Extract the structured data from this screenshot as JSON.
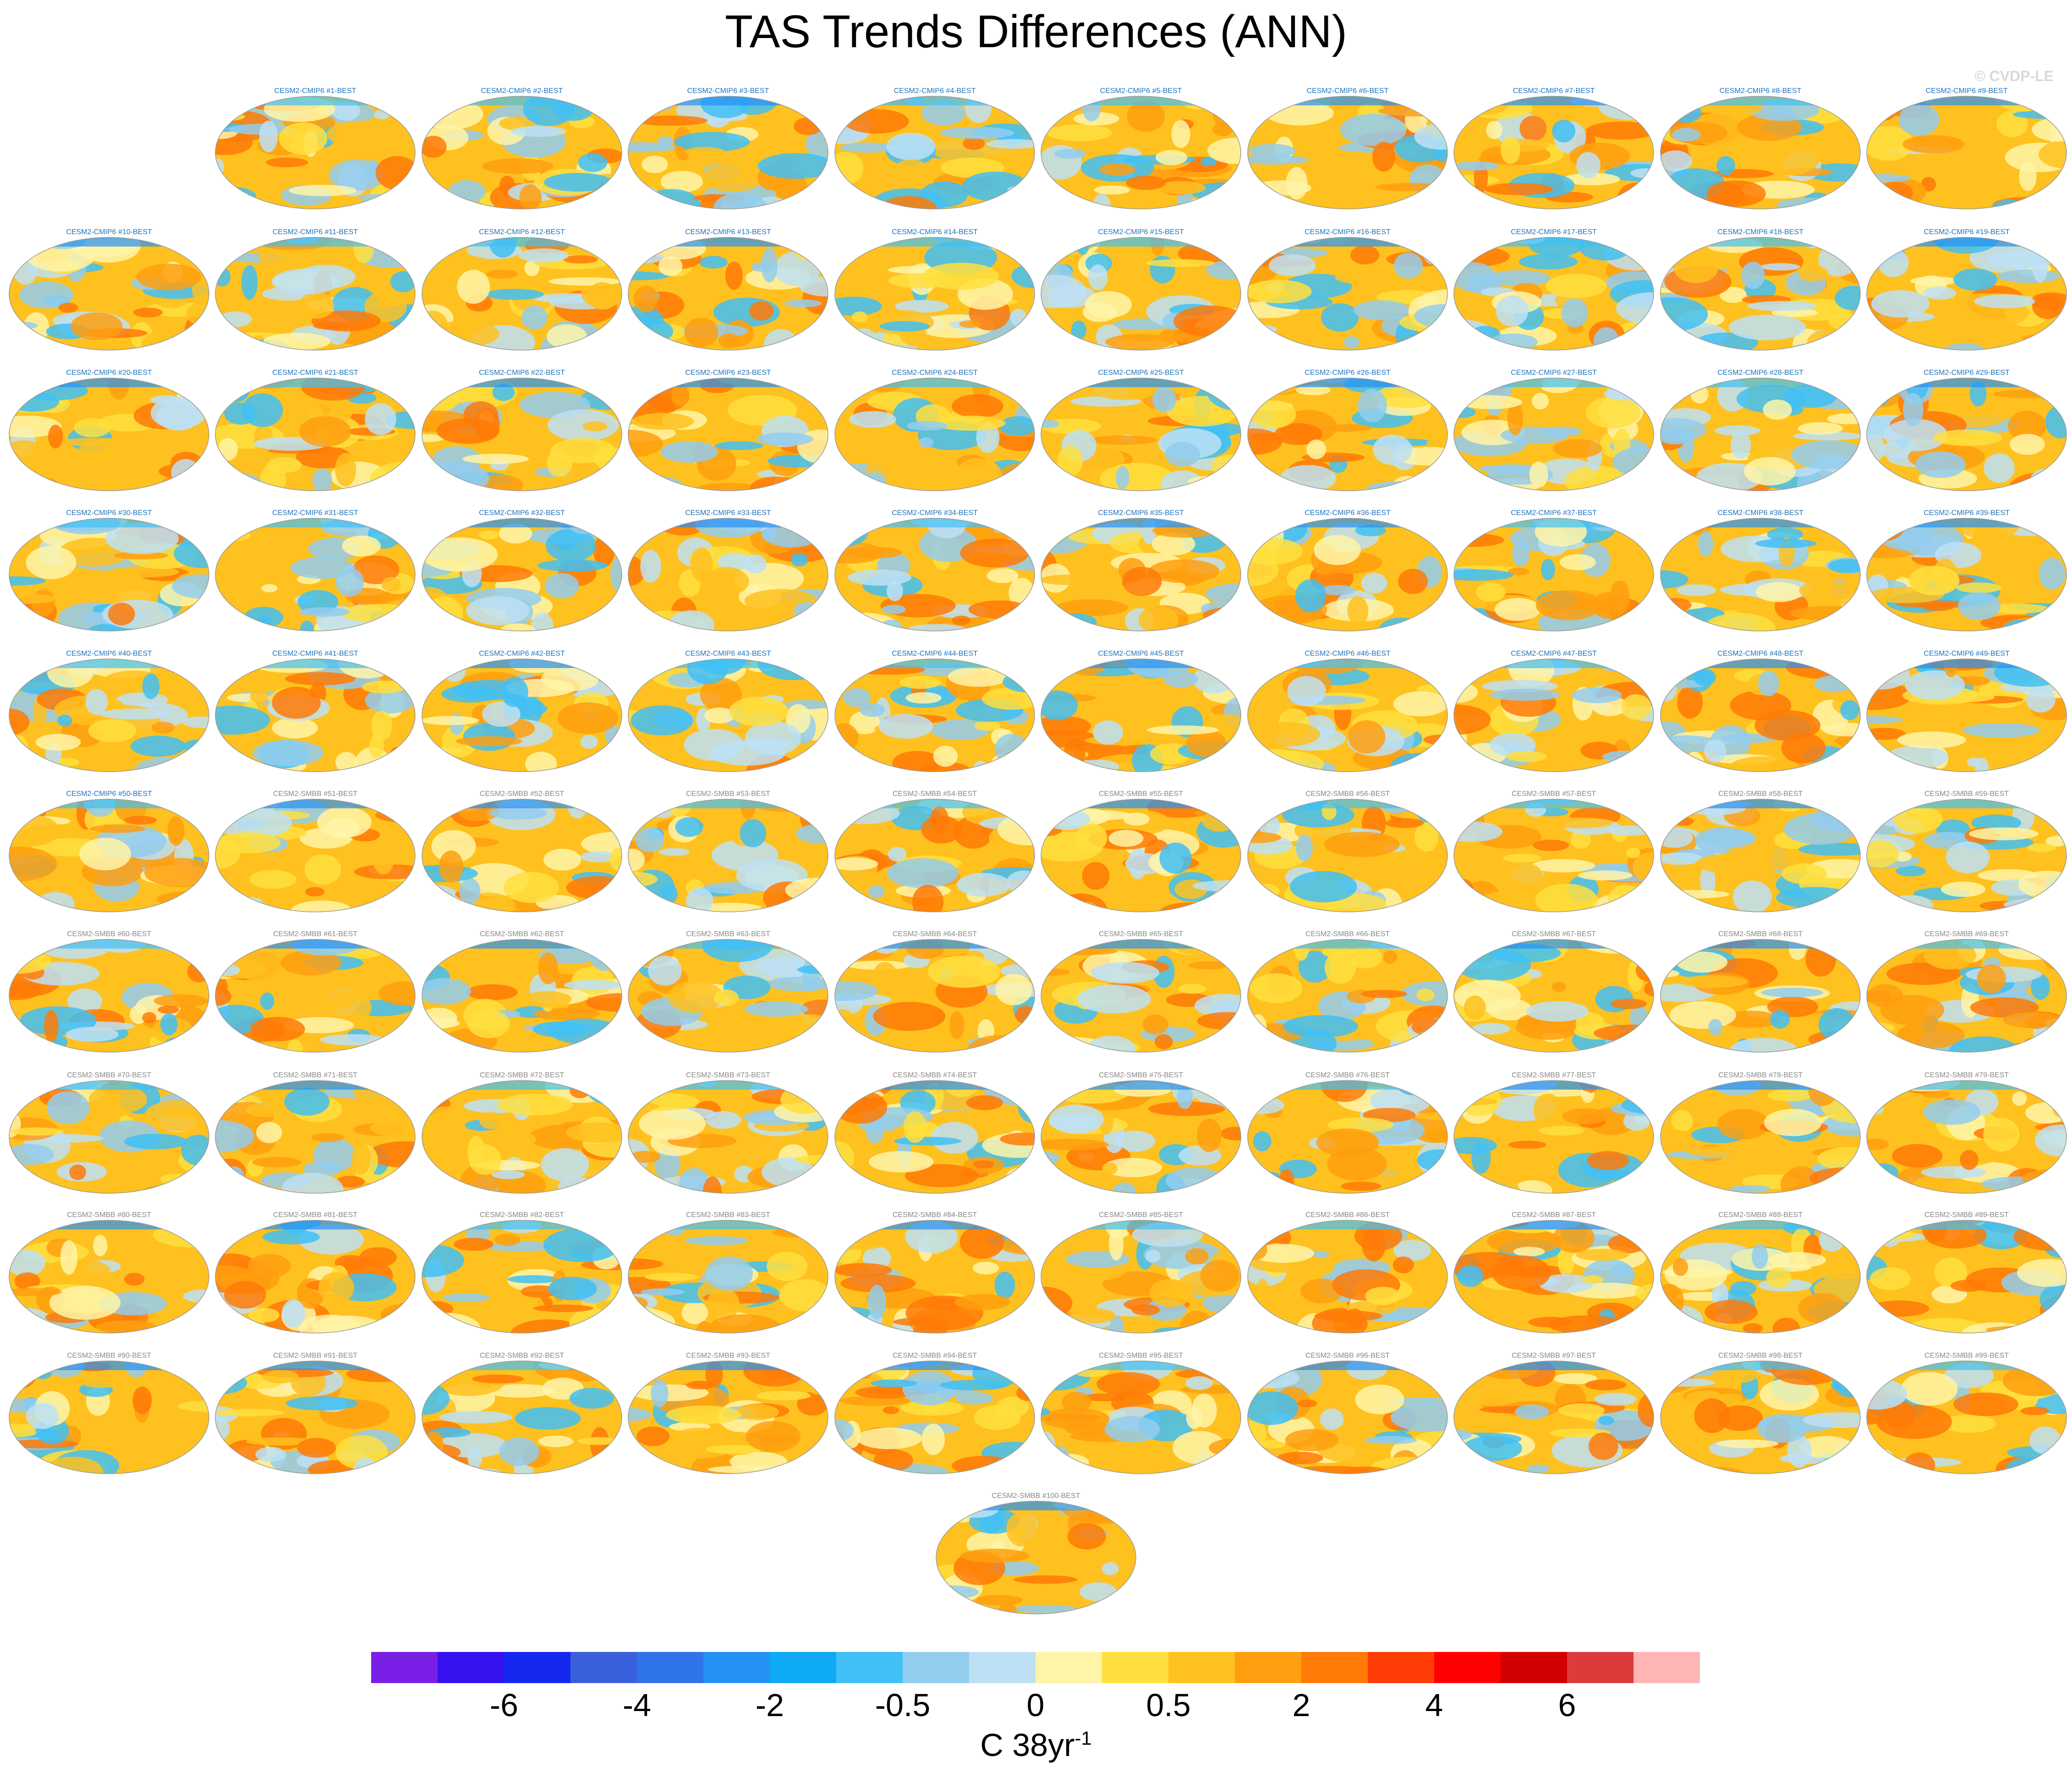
{
  "title": "TAS Trends Differences (ANN)",
  "watermark": "© CVDP-LE",
  "panels": [
    "CESM2-CMIP6 #1-BEST",
    "CESM2-CMIP6 #2-BEST",
    "CESM2-CMIP6 #3-BEST",
    "CESM2-CMIP6 #4-BEST",
    "CESM2-CMIP6 #5-BEST",
    "CESM2-CMIP6 #6-BEST",
    "CESM2-CMIP6 #7-BEST",
    "CESM2-CMIP6 #8-BEST",
    "CESM2-CMIP6 #9-BEST",
    "CESM2-CMIP6 #10-BEST",
    "CESM2-CMIP6 #11-BEST",
    "CESM2-CMIP6 #12-BEST",
    "CESM2-CMIP6 #13-BEST",
    "CESM2-CMIP6 #14-BEST",
    "CESM2-CMIP6 #15-BEST",
    "CESM2-CMIP6 #16-BEST",
    "CESM2-CMIP6 #17-BEST",
    "CESM2-CMIP6 #18-BEST",
    "CESM2-CMIP6 #19-BEST",
    "CESM2-CMIP6 #20-BEST",
    "CESM2-CMIP6 #21-BEST",
    "CESM2-CMIP6 #22-BEST",
    "CESM2-CMIP6 #23-BEST",
    "CESM2-CMIP6 #24-BEST",
    "CESM2-CMIP6 #25-BEST",
    "CESM2-CMIP6 #26-BEST",
    "CESM2-CMIP6 #27-BEST",
    "CESM2-CMIP6 #28-BEST",
    "CESM2-CMIP6 #29-BEST",
    "CESM2-CMIP6 #30-BEST",
    "CESM2-CMIP6 #31-BEST",
    "CESM2-CMIP6 #32-BEST",
    "CESM2-CMIP6 #33-BEST",
    "CESM2-CMIP6 #34-BEST",
    "CESM2-CMIP6 #35-BEST",
    "CESM2-CMIP6 #36-BEST",
    "CESM2-CMIP6 #37-BEST",
    "CESM2-CMIP6 #38-BEST",
    "CESM2-CMIP6 #39-BEST",
    "CESM2-CMIP6 #40-BEST",
    "CESM2-CMIP6 #41-BEST",
    "CESM2-CMIP6 #42-BEST",
    "CESM2-CMIP6 #43-BEST",
    "CESM2-CMIP6 #44-BEST",
    "CESM2-CMIP6 #45-BEST",
    "CESM2-CMIP6 #46-BEST",
    "CESM2-CMIP6 #47-BEST",
    "CESM2-CMIP6 #48-BEST",
    "CESM2-CMIP6 #49-BEST",
    "CESM2-CMIP6 #50-BEST",
    "CESM2-SMBB #51-BEST",
    "CESM2-SMBB #52-BEST",
    "CESM2-SMBB #53-BEST",
    "CESM2-SMBB #54-BEST",
    "CESM2-SMBB #55-BEST",
    "CESM2-SMBB #56-BEST",
    "CESM2-SMBB #57-BEST",
    "CESM2-SMBB #58-BEST",
    "CESM2-SMBB #59-BEST",
    "CESM2-SMBB #60-BEST",
    "CESM2-SMBB #61-BEST",
    "CESM2-SMBB #62-BEST",
    "CESM2-SMBB #63-BEST",
    "CESM2-SMBB #64-BEST",
    "CESM2-SMBB #65-BEST",
    "CESM2-SMBB #66-BEST",
    "CESM2-SMBB #67-BEST",
    "CESM2-SMBB #68-BEST",
    "CESM2-SMBB #69-BEST",
    "CESM2-SMBB #70-BEST",
    "CESM2-SMBB #71-BEST",
    "CESM2-SMBB #72-BEST",
    "CESM2-SMBB #73-BEST",
    "CESM2-SMBB #74-BEST",
    "CESM2-SMBB #75-BEST",
    "CESM2-SMBB #76-BEST",
    "CESM2-SMBB #77-BEST",
    "CESM2-SMBB #78-BEST",
    "CESM2-SMBB #79-BEST",
    "CESM2-SMBB #80-BEST",
    "CESM2-SMBB #81-BEST",
    "CESM2-SMBB #82-BEST",
    "CESM2-SMBB #83-BEST",
    "CESM2-SMBB #84-BEST",
    "CESM2-SMBB #85-BEST",
    "CESM2-SMBB #86-BEST",
    "CESM2-SMBB #87-BEST",
    "CESM2-SMBB #88-BEST",
    "CESM2-SMBB #89-BEST",
    "CESM2-SMBB #90-BEST",
    "CESM2-SMBB #91-BEST",
    "CESM2-SMBB #92-BEST",
    "CESM2-SMBB #93-BEST",
    "CESM2-SMBB #94-BEST",
    "CESM2-SMBB #95-BEST",
    "CESM2-SMBB #96-BEST",
    "CESM2-SMBB #97-BEST",
    "CESM2-SMBB #98-BEST",
    "CESM2-SMBB #99-BEST",
    "CESM2-SMBB #100-BEST"
  ],
  "label_colors": {
    "CESM2-CMIP6": "#1e73be",
    "CESM2-SMBB": "#888888"
  },
  "colorbar": {
    "colors": [
      "#7a1fe6",
      "#3512ef",
      "#1428f0",
      "#3a5fdc",
      "#2f74ea",
      "#2591f5",
      "#0eaaf5",
      "#41c0f5",
      "#93cdee",
      "#bde0f4",
      "#fff5a8",
      "#ffdf3f",
      "#ffc11f",
      "#ff9f0f",
      "#ff7a07",
      "#ff3d06",
      "#ff0000",
      "#d20000",
      "#dc3b3b",
      "#ffb5b5"
    ],
    "tick_labels": [
      "-6",
      "-4",
      "-2",
      "-0.5",
      "0",
      "0.5",
      "2",
      "4",
      "6"
    ],
    "units": "C 38yr",
    "units_exponent": "-1"
  }
}
